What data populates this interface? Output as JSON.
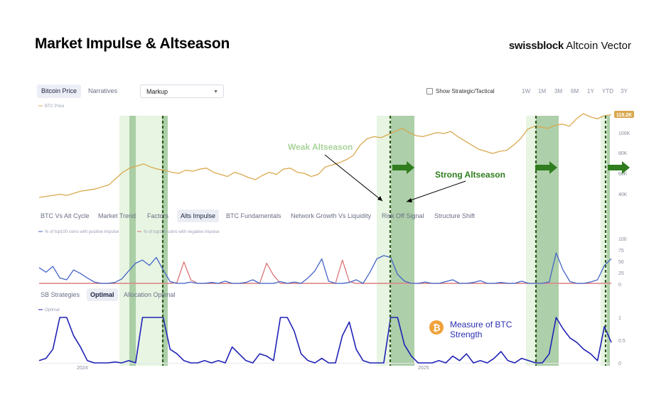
{
  "header": {
    "title": "Market Impulse & Altseason",
    "brand_bold": "swissblock",
    "brand_light": "Altcoin Vector"
  },
  "toolbar": {
    "tabs": [
      "Bitcoin Price",
      "Narratives"
    ],
    "select_value": "Markup",
    "checkbox_label": "Show Strategic/Tactical",
    "ranges": [
      "1W",
      "1M",
      "3M",
      "6M",
      "1Y",
      "YTD",
      "3Y"
    ]
  },
  "panel_tabs": [
    "BTC Vs Alt Cycle",
    "Market Trend",
    "Factors",
    "Alts Impulse",
    "BTC Fundamentals",
    "Network Growth Vs Liquidity",
    "Risk Off Signal",
    "Structure Shift"
  ],
  "strategy_tabs": [
    "SB Strategies",
    "Optimal",
    "Allocation Optimal"
  ],
  "annotations": {
    "weak": "Weak Altseason",
    "strong": "Strong Altseason",
    "btc_strength_line1": "Measure of BTC",
    "btc_strength_line2": "Strength"
  },
  "colors": {
    "btc": "#d9a94f",
    "positive": "#4565c9",
    "negative": "#d96b6b",
    "optimal": "#1f22b5",
    "weak_zone": "#e3f3dd",
    "strong_zone": "#9fc79a",
    "arrow_green": "#2f7d1e",
    "weak_text": "#a9d39a"
  },
  "chart_data": [
    {
      "type": "line",
      "title": "Bitcoin Price",
      "legend": [
        "BTC Price"
      ],
      "y_ticks": [
        "100K",
        "80K",
        "60K",
        "40K"
      ],
      "last_value_label": "119.2K",
      "x_labels": [
        "2024",
        "2025"
      ],
      "series": [
        {
          "name": "BTC Price",
          "values": [
            40,
            41,
            42,
            43,
            42,
            44,
            46,
            47,
            48,
            50,
            52,
            58,
            64,
            68,
            70,
            72,
            69,
            67,
            66,
            64,
            63,
            66,
            65,
            67,
            68,
            64,
            62,
            60,
            64,
            62,
            59,
            57,
            61,
            64,
            62,
            67,
            68,
            64,
            63,
            60,
            62,
            69,
            71,
            73,
            76,
            80,
            90,
            96,
            98,
            97,
            100,
            103,
            106,
            102,
            99,
            98,
            100,
            102,
            101,
            103,
            98,
            94,
            90,
            86,
            84,
            82,
            84,
            85,
            90,
            96,
            105,
            108,
            107,
            106,
            109,
            110,
            108,
            115,
            120,
            117,
            115,
            118,
            119
          ]
        }
      ]
    },
    {
      "type": "line",
      "title": "Alts Impulse",
      "legend": [
        "% of top100 coins with positive impulse",
        "% of top100 coins with negative impulse"
      ],
      "y_ticks": [
        "100",
        "75",
        "50",
        "25",
        "0"
      ],
      "ylim": [
        0,
        100
      ],
      "series": [
        {
          "name": "% of top100 coins with positive impulse",
          "values": [
            35,
            25,
            38,
            12,
            8,
            30,
            22,
            12,
            3,
            0,
            0,
            2,
            10,
            28,
            45,
            52,
            40,
            58,
            30,
            4,
            0,
            0,
            3,
            0,
            0,
            2,
            0,
            5,
            0,
            0,
            2,
            8,
            0,
            0,
            0,
            4,
            0,
            3,
            0,
            12,
            28,
            55,
            5,
            0,
            0,
            2,
            8,
            0,
            25,
            55,
            62,
            58,
            20,
            5,
            0,
            0,
            3,
            0,
            0,
            4,
            8,
            0,
            0,
            2,
            6,
            0,
            0,
            2,
            0,
            0,
            5,
            0,
            0,
            0,
            3,
            68,
            30,
            4,
            0,
            0,
            3,
            8,
            40,
            55
          ]
        },
        {
          "name": "% of top100 coins with negative impulse",
          "values": [
            0,
            0,
            0,
            0,
            0,
            0,
            0,
            0,
            0,
            0,
            0,
            0,
            0,
            0,
            0,
            0,
            0,
            0,
            0,
            0,
            2,
            48,
            8,
            0,
            0,
            0,
            0,
            0,
            0,
            0,
            0,
            0,
            0,
            45,
            18,
            0,
            0,
            0,
            0,
            0,
            0,
            0,
            0,
            0,
            52,
            4,
            0,
            0,
            0,
            0,
            0,
            0,
            0,
            0,
            0,
            0,
            0,
            0,
            0,
            0,
            0,
            0,
            0,
            0,
            0,
            0,
            0,
            0,
            0,
            0,
            0,
            0,
            0,
            0,
            0,
            0,
            0,
            0,
            0,
            0,
            0,
            0,
            0,
            0
          ]
        }
      ]
    },
    {
      "type": "line",
      "title": "Optimal",
      "legend": [
        "Optimal"
      ],
      "y_ticks": [
        "1",
        "0.5",
        "0"
      ],
      "ylim": [
        0,
        1
      ],
      "series": [
        {
          "name": "Optimal",
          "values": [
            0.05,
            0.1,
            0.3,
            1,
            1,
            0.6,
            0.35,
            0.05,
            0,
            0,
            0,
            0.02,
            0,
            0.05,
            0,
            1,
            1,
            1,
            1,
            0.3,
            0.2,
            0.05,
            0,
            0,
            0.05,
            0,
            0.05,
            0,
            0.35,
            0.2,
            0.05,
            0,
            0.2,
            0.15,
            0.05,
            1,
            1,
            0.7,
            0.2,
            0.05,
            0,
            0.1,
            0,
            0,
            0.6,
            0.9,
            0.3,
            0.05,
            0,
            0,
            0,
            1,
            1,
            0.4,
            0.15,
            0,
            0,
            0,
            0.05,
            0,
            0.15,
            0.05,
            0.2,
            0,
            0.05,
            0,
            0.1,
            0.25,
            0.05,
            0,
            0.1,
            0.05,
            0,
            0,
            0.2,
            1,
            0.75,
            0.55,
            0.45,
            0.3,
            0.2,
            0.05,
            0.8,
            0.45
          ]
        }
      ]
    }
  ]
}
